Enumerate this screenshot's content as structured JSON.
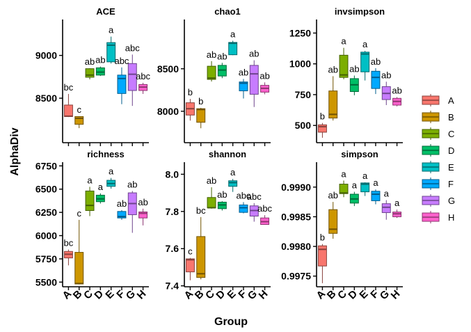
{
  "chart_data": {
    "type": "box",
    "ylabel": "AlphaDiv",
    "xlabel": "Group",
    "groups": [
      "A",
      "B",
      "C",
      "D",
      "E",
      "F",
      "G",
      "H"
    ],
    "colors": [
      "#F8766D",
      "#CD9600",
      "#7CAE00",
      "#00BE67",
      "#00BFC4",
      "#00A9FF",
      "#C77CFF",
      "#FF61CC"
    ],
    "legend": {
      "position": "right",
      "keys": [
        "A",
        "B",
        "C",
        "D",
        "E",
        "F",
        "G",
        "H"
      ]
    },
    "panels": [
      {
        "title": "ACE",
        "ylim": [
          7980,
          9420
        ],
        "ticks": [
          8500,
          9000
        ],
        "tick_labels": [
          "8500",
          "9000"
        ],
        "boxes": [
          {
            "group": "A",
            "min": 8280,
            "q1": 8285,
            "median": 8290,
            "q3": 8420,
            "max": 8550,
            "letter": "bc"
          },
          {
            "group": "B",
            "min": 8150,
            "q1": 8195,
            "median": 8265,
            "q3": 8285,
            "max": 8290,
            "letter": "c"
          },
          {
            "group": "C",
            "min": 8720,
            "q1": 8745,
            "median": 8770,
            "q3": 8845,
            "max": 8850,
            "letter": "ab"
          },
          {
            "group": "D",
            "min": 8760,
            "q1": 8770,
            "median": 8805,
            "q3": 8855,
            "max": 8870,
            "letter": "ab"
          },
          {
            "group": "E",
            "min": 8905,
            "q1": 8925,
            "median": 9120,
            "q3": 9150,
            "max": 9220,
            "letter": "a"
          },
          {
            "group": "F",
            "min": 8430,
            "q1": 8555,
            "median": 8730,
            "q3": 8770,
            "max": 8860,
            "letter": "abc"
          },
          {
            "group": "G",
            "min": 8410,
            "q1": 8590,
            "median": 8780,
            "q3": 8905,
            "max": 9010,
            "letter": "abc"
          },
          {
            "group": "H",
            "min": 8550,
            "q1": 8590,
            "median": 8630,
            "q3": 8660,
            "max": 8680,
            "letter": "abc"
          }
        ]
      },
      {
        "title": "chao1",
        "ylim": [
          7630,
          9080
        ],
        "ticks": [
          8000,
          8500
        ],
        "tick_labels": [
          "8000",
          "8500"
        ],
        "boxes": [
          {
            "group": "A",
            "min": 7890,
            "q1": 7955,
            "median": 8030,
            "q3": 8100,
            "max": 8145,
            "letter": "b"
          },
          {
            "group": "B",
            "min": 7800,
            "q1": 7870,
            "median": 8020,
            "q3": 8030,
            "max": 8040,
            "letter": "b"
          },
          {
            "group": "C",
            "min": 8350,
            "q1": 8375,
            "median": 8390,
            "q3": 8530,
            "max": 8590,
            "letter": "ab"
          },
          {
            "group": "D",
            "min": 8390,
            "q1": 8415,
            "median": 8485,
            "q3": 8540,
            "max": 8570,
            "letter": "ab"
          },
          {
            "group": "E",
            "min": 8660,
            "q1": 8665,
            "median": 8800,
            "q3": 8810,
            "max": 8830,
            "letter": "a"
          },
          {
            "group": "F",
            "min": 8150,
            "q1": 8240,
            "median": 8330,
            "q3": 8345,
            "max": 8380,
            "letter": "ab"
          },
          {
            "group": "G",
            "min": 8050,
            "q1": 8200,
            "median": 8440,
            "q3": 8540,
            "max": 8600,
            "letter": "ab"
          },
          {
            "group": "H",
            "min": 8200,
            "q1": 8225,
            "median": 8270,
            "q3": 8305,
            "max": 8340,
            "letter": "ab"
          }
        ]
      },
      {
        "title": "invsimpson",
        "ylim": [
          360,
          1360
        ],
        "ticks": [
          500,
          750,
          1000,
          1250
        ],
        "tick_labels": [
          "500",
          "750",
          "1000",
          "1250"
        ],
        "boxes": [
          {
            "group": "A",
            "min": 400,
            "q1": 445,
            "median": 490,
            "q3": 505,
            "max": 520,
            "letter": "b"
          },
          {
            "group": "B",
            "min": 540,
            "q1": 560,
            "median": 590,
            "q3": 780,
            "max": 900,
            "letter": "ab"
          },
          {
            "group": "C",
            "min": 875,
            "q1": 890,
            "median": 910,
            "q3": 1070,
            "max": 1130,
            "letter": "a"
          },
          {
            "group": "D",
            "min": 745,
            "q1": 775,
            "median": 830,
            "q3": 880,
            "max": 905,
            "letter": "ab"
          },
          {
            "group": "E",
            "min": 865,
            "q1": 935,
            "median": 1080,
            "q3": 1095,
            "max": 1105,
            "letter": "a"
          },
          {
            "group": "F",
            "min": 755,
            "q1": 800,
            "median": 890,
            "q3": 940,
            "max": 965,
            "letter": "ab"
          },
          {
            "group": "G",
            "min": 665,
            "q1": 710,
            "median": 760,
            "q3": 815,
            "max": 855,
            "letter": "ab"
          },
          {
            "group": "H",
            "min": 655,
            "q1": 665,
            "median": 695,
            "q3": 720,
            "max": 730,
            "letter": "ab"
          }
        ]
      },
      {
        "title": "richness",
        "ylim": [
          5450,
          6790
        ],
        "ticks": [
          5500,
          5750,
          6000,
          6250,
          6500,
          6750
        ],
        "tick_labels": [
          "5500",
          "5750",
          "6000",
          "6250",
          "6500",
          "6750"
        ],
        "boxes": [
          {
            "group": "A",
            "min": 5680,
            "q1": 5760,
            "median": 5800,
            "q3": 5830,
            "max": 5850,
            "letter": "bc"
          },
          {
            "group": "B",
            "min": 5475,
            "q1": 5480,
            "median": 5485,
            "q3": 5820,
            "max": 6170,
            "letter": "c"
          },
          {
            "group": "C",
            "min": 6210,
            "q1": 6270,
            "median": 6325,
            "q3": 6480,
            "max": 6525,
            "letter": "a"
          },
          {
            "group": "D",
            "min": 6345,
            "q1": 6365,
            "median": 6395,
            "q3": 6435,
            "max": 6455,
            "letter": "a"
          },
          {
            "group": "E",
            "min": 6505,
            "q1": 6530,
            "median": 6560,
            "q3": 6595,
            "max": 6620,
            "letter": "a"
          },
          {
            "group": "F",
            "min": 6170,
            "q1": 6190,
            "median": 6205,
            "q3": 6260,
            "max": 6275,
            "letter": "ab"
          },
          {
            "group": "G",
            "min": 6030,
            "q1": 6225,
            "median": 6345,
            "q3": 6460,
            "max": 6480,
            "letter": "ab"
          },
          {
            "group": "H",
            "min": 6110,
            "q1": 6190,
            "median": 6240,
            "q3": 6255,
            "max": 6290,
            "letter": "ab"
          }
        ]
      },
      {
        "title": "shannon",
        "ylim": [
          7395,
          8065
        ],
        "ticks": [
          7.4,
          7.6,
          7.8,
          8.0
        ],
        "tick_labels": [
          "7.4",
          "7.6",
          "7.8",
          "8.0"
        ],
        "boxes": [
          {
            "group": "A",
            "min": 7.43,
            "q1": 7.475,
            "median": 7.54,
            "q3": 7.545,
            "max": 7.55,
            "letter": "c"
          },
          {
            "group": "B",
            "min": 7.435,
            "q1": 7.445,
            "median": 7.465,
            "q3": 7.665,
            "max": 7.77,
            "letter": "bc"
          },
          {
            "group": "C",
            "min": 7.815,
            "q1": 7.82,
            "median": 7.82,
            "q3": 7.875,
            "max": 7.93,
            "letter": "ab"
          },
          {
            "group": "D",
            "min": 7.805,
            "q1": 7.815,
            "median": 7.835,
            "q3": 7.85,
            "max": 7.855,
            "letter": "ab"
          },
          {
            "group": "E",
            "min": 7.905,
            "q1": 7.935,
            "median": 7.955,
            "q3": 7.965,
            "max": 7.975,
            "letter": "a"
          },
          {
            "group": "F",
            "min": 7.79,
            "q1": 7.795,
            "median": 7.82,
            "q3": 7.835,
            "max": 7.85,
            "letter": "abc"
          },
          {
            "group": "G",
            "min": 7.745,
            "q1": 7.775,
            "median": 7.805,
            "q3": 7.83,
            "max": 7.845,
            "letter": "abc"
          },
          {
            "group": "H",
            "min": 7.73,
            "q1": 7.73,
            "median": 7.745,
            "q3": 7.765,
            "max": 7.78,
            "letter": "abc"
          }
        ]
      },
      {
        "title": "simpson",
        "ylim": [
          0.99732,
          0.99942
        ],
        "ticks": [
          0.9975,
          0.998,
          0.9985,
          0.999
        ],
        "tick_labels": [
          "0.9975",
          "0.9980",
          "0.9985",
          "0.9990"
        ],
        "boxes": [
          {
            "group": "A",
            "min": 0.99738,
            "q1": 0.99767,
            "median": 0.99795,
            "q3": 0.99801,
            "max": 0.99804,
            "letter": "b"
          },
          {
            "group": "B",
            "min": 0.99813,
            "q1": 0.99822,
            "median": 0.99829,
            "q3": 0.99862,
            "max": 0.99875,
            "letter": "ab"
          },
          {
            "group": "C",
            "min": 0.99883,
            "q1": 0.99889,
            "median": 0.9989,
            "q3": 0.99905,
            "max": 0.99911,
            "letter": "a"
          },
          {
            "group": "D",
            "min": 0.99868,
            "q1": 0.99873,
            "median": 0.9988,
            "q3": 0.99888,
            "max": 0.99892,
            "letter": "a"
          },
          {
            "group": "E",
            "min": 0.99885,
            "q1": 0.99892,
            "median": 0.99905,
            "q3": 0.99907,
            "max": 0.99908,
            "letter": "a"
          },
          {
            "group": "F",
            "min": 0.99871,
            "q1": 0.99877,
            "median": 0.99888,
            "q3": 0.99893,
            "max": 0.99896,
            "letter": "a"
          },
          {
            "group": "G",
            "min": 0.99845,
            "q1": 0.99857,
            "median": 0.99866,
            "q3": 0.99872,
            "max": 0.99878,
            "letter": "a"
          },
          {
            "group": "H",
            "min": 0.99848,
            "q1": 0.9985,
            "median": 0.99855,
            "q3": 0.99858,
            "max": 0.99862,
            "letter": "a"
          }
        ]
      }
    ]
  }
}
